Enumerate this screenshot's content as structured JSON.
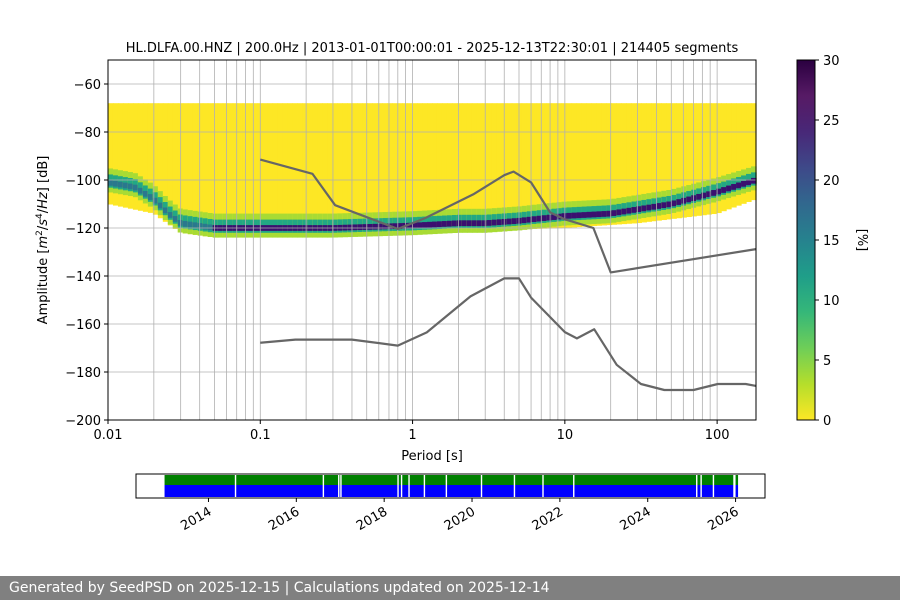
{
  "chart_data": [
    {
      "type": "heatmap",
      "title": "HL.DLFA.00.HNZ | 200.0Hz | 2013-01-01T00:00:01 - 2025-12-13T22:30:01 | 214405 segments",
      "xlabel": "Period [s]",
      "ylabel": "Amplitude [m²/s⁴/Hz] [dB]",
      "x_scale": "log",
      "xlim": [
        0.01,
        180
      ],
      "ylim": [
        -200,
        -50
      ],
      "x_ticks": [
        {
          "value": 0.01,
          "label": "0.01"
        },
        {
          "value": 0.1,
          "label": "0.1"
        },
        {
          "value": 1,
          "label": "1"
        },
        {
          "value": 10,
          "label": "10"
        },
        {
          "value": 100,
          "label": "100"
        }
      ],
      "y_ticks": [
        -60,
        -80,
        -100,
        -120,
        -140,
        -160,
        -180,
        -200
      ],
      "grid": true,
      "colormap": "viridis_r",
      "colorbar": {
        "label": "[%]",
        "range": [
          0,
          30
        ],
        "ticks": [
          0,
          5,
          10,
          15,
          20,
          25,
          30
        ]
      },
      "mode_curve": {
        "x": [
          0.01,
          0.015,
          0.02,
          0.025,
          0.03,
          0.05,
          0.1,
          0.3,
          1,
          2,
          3,
          5,
          7,
          10,
          20,
          50,
          100,
          180
        ],
        "y": [
          -101,
          -103,
          -108,
          -114,
          -118,
          -120,
          -120,
          -120,
          -119,
          -118,
          -118,
          -117,
          -116,
          -115,
          -114,
          -110,
          -105,
          -100
        ]
      },
      "upper_extent": {
        "x": [
          0.01,
          0.02,
          0.04,
          0.1,
          1,
          10,
          180
        ],
        "y": [
          -68,
          -68,
          -68,
          -68,
          -68,
          -68,
          -68
        ]
      },
      "lower_extent": {
        "x": [
          0.01,
          0.02,
          0.03,
          0.05,
          0.1,
          1,
          10,
          30,
          100,
          180
        ],
        "y": [
          -110,
          -114,
          -122,
          -124,
          -122,
          -122,
          -120,
          -118,
          -114,
          -108
        ]
      },
      "series": [
        {
          "name": "",
          "color": "#666666",
          "x": [
            0.1,
            0.22,
            0.31,
            0.8,
            1.2,
            2.5,
            4.0,
            4.6,
            6.0,
            8.0,
            10.0,
            15.4,
            20.0,
            180.0
          ],
          "y": [
            -91.5,
            -97.4,
            -110.5,
            -120.4,
            -116.0,
            -106.0,
            -98.0,
            -96.5,
            -101.0,
            -113.5,
            -116.4,
            -120.0,
            -138.5,
            -128.8
          ]
        },
        {
          "name": "",
          "color": "#666666",
          "x": [
            0.1,
            0.17,
            0.4,
            0.8,
            1.24,
            2.4,
            4.0,
            5.0,
            6.0,
            10.0,
            12.0,
            15.6,
            21.9,
            31.6,
            45.0,
            70.0,
            101.0,
            154.0,
            180.0
          ],
          "y": [
            -167.8,
            -166.5,
            -166.5,
            -169.0,
            -163.5,
            -148.5,
            -141.0,
            -141.0,
            -149.0,
            -163.4,
            -166.0,
            -162.2,
            -177.0,
            -185.0,
            -187.5,
            -187.5,
            -185.0,
            -185.0,
            -185.8
          ]
        }
      ]
    },
    {
      "type": "timeline",
      "x_ticks": [
        "2014",
        "2016",
        "2018",
        "2020",
        "2022",
        "2024",
        "2026"
      ],
      "x_tick_years": [
        2014,
        2016,
        2018,
        2020,
        2022,
        2024,
        2026
      ],
      "xlim": [
        2012.35,
        2026.67
      ],
      "coverage": [
        {
          "start": 2013.0,
          "end": 2025.95
        }
      ],
      "gaps": [
        2014.6,
        2016.6,
        2016.95,
        2017.0,
        2018.3,
        2018.38,
        2018.55,
        2018.9,
        2019.4,
        2020.2,
        2020.95,
        2021.6,
        2022.3,
        2025.1,
        2025.2,
        2025.48
      ],
      "colors": {
        "top": "#008000",
        "bottom": "#0000ff"
      }
    }
  ],
  "footer": {
    "text": "Generated by SeedPSD on 2025-12-15 | Calculations updated on 2025-12-14"
  }
}
